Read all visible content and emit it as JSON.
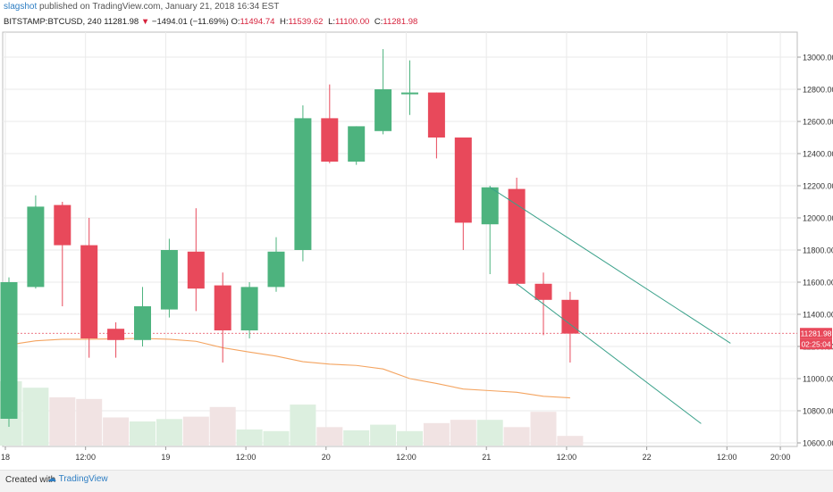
{
  "header": {
    "author": "slagshot",
    "published_text": "published on TradingView.com, January 21, 2018 16:34 EST",
    "symbol": "BITSTAMP:BTCUSD, 240",
    "last_price": "11281.98",
    "arrow": "▼",
    "change": "−1494.01 (−11.69%)",
    "o_label": "O:",
    "o_value": "11494.74",
    "h_label": "H:",
    "h_value": "11539.62",
    "l_label": "L:",
    "l_value": "11100.00",
    "c_label": "C:",
    "c_value": "11281.98"
  },
  "footer": {
    "created_with": "Created with",
    "brand": "TradingView"
  },
  "colors": {
    "up": "#4db37e",
    "down": "#e8495b",
    "volume_up": "#dcefdf",
    "volume_down": "#f1e3e3",
    "ma": "#f4a460",
    "trendline": "#3aa18a",
    "price_line": "#e8495b",
    "grid": "#eaeaea"
  },
  "chart_data": {
    "type": "candlestick",
    "y_axis_ticks": [
      "13000.00",
      "12800.00",
      "12600.00",
      "12400.00",
      "12200.00",
      "12000.00",
      "11800.00",
      "11600.00",
      "11400.00",
      "11200.00",
      "11000.00",
      "10800.00",
      "10600.00"
    ],
    "x_axis_ticks": [
      {
        "label": "18",
        "index": 0
      },
      {
        "label": "12:00",
        "index": 3
      },
      {
        "label": "19",
        "index": 6
      },
      {
        "label": "12:00",
        "index": 9
      },
      {
        "label": "20",
        "index": 12
      },
      {
        "label": "12:00",
        "index": 15
      },
      {
        "label": "21",
        "index": 18
      },
      {
        "label": "12:00",
        "index": 21
      },
      {
        "label": "22",
        "index": 24
      },
      {
        "label": "12:00",
        "index": 27
      },
      {
        "label": "20:00",
        "index": 29
      }
    ],
    "ylim": [
      10550,
      13120
    ],
    "candles": [
      {
        "o": 10750,
        "h": 11630,
        "l": 10700,
        "c": 11600
      },
      {
        "o": 11570,
        "h": 12140,
        "l": 11560,
        "c": 12070
      },
      {
        "o": 12080,
        "h": 12100,
        "l": 11450,
        "c": 11830
      },
      {
        "o": 11830,
        "h": 12000,
        "l": 11130,
        "c": 11250
      },
      {
        "o": 11310,
        "h": 11350,
        "l": 11130,
        "c": 11240
      },
      {
        "o": 11240,
        "h": 11570,
        "l": 11200,
        "c": 11450
      },
      {
        "o": 11430,
        "h": 11870,
        "l": 11380,
        "c": 11800
      },
      {
        "o": 11790,
        "h": 12060,
        "l": 11420,
        "c": 11560
      },
      {
        "o": 11580,
        "h": 11660,
        "l": 11100,
        "c": 11300
      },
      {
        "o": 11300,
        "h": 11600,
        "l": 11250,
        "c": 11570
      },
      {
        "o": 11570,
        "h": 11880,
        "l": 11540,
        "c": 11790
      },
      {
        "o": 11800,
        "h": 12700,
        "l": 11730,
        "c": 12620
      },
      {
        "o": 12620,
        "h": 12830,
        "l": 12340,
        "c": 12350
      },
      {
        "o": 12350,
        "h": 12570,
        "l": 12330,
        "c": 12570
      },
      {
        "o": 12540,
        "h": 13050,
        "l": 12520,
        "c": 12800
      },
      {
        "o": 12770,
        "h": 12980,
        "l": 12640,
        "c": 12780
      },
      {
        "o": 12780,
        "h": 12780,
        "l": 12370,
        "c": 12500
      },
      {
        "o": 12500,
        "h": 12500,
        "l": 11800,
        "c": 11970
      },
      {
        "o": 11960,
        "h": 12200,
        "l": 11650,
        "c": 12190
      },
      {
        "o": 12180,
        "h": 12250,
        "l": 11580,
        "c": 11590
      },
      {
        "o": 11590,
        "h": 11660,
        "l": 11270,
        "c": 11490
      },
      {
        "o": 11490,
        "h": 11540,
        "l": 11100,
        "c": 11280
      }
    ],
    "volume": [
      {
        "v": 0.8,
        "dir": "up"
      },
      {
        "v": 0.72,
        "dir": "up"
      },
      {
        "v": 0.6,
        "dir": "down"
      },
      {
        "v": 0.58,
        "dir": "down"
      },
      {
        "v": 0.35,
        "dir": "down"
      },
      {
        "v": 0.3,
        "dir": "up"
      },
      {
        "v": 0.33,
        "dir": "up"
      },
      {
        "v": 0.36,
        "dir": "down"
      },
      {
        "v": 0.48,
        "dir": "down"
      },
      {
        "v": 0.2,
        "dir": "up"
      },
      {
        "v": 0.18,
        "dir": "up"
      },
      {
        "v": 0.51,
        "dir": "up"
      },
      {
        "v": 0.23,
        "dir": "down"
      },
      {
        "v": 0.19,
        "dir": "up"
      },
      {
        "v": 0.26,
        "dir": "up"
      },
      {
        "v": 0.18,
        "dir": "up"
      },
      {
        "v": 0.28,
        "dir": "down"
      },
      {
        "v": 0.32,
        "dir": "down"
      },
      {
        "v": 0.32,
        "dir": "up"
      },
      {
        "v": 0.23,
        "dir": "down"
      },
      {
        "v": 0.42,
        "dir": "down"
      },
      {
        "v": 0.12,
        "dir": "down"
      }
    ],
    "moving_average": [
      {
        "i": 0,
        "y": 11210
      },
      {
        "i": 1,
        "y": 11235
      },
      {
        "i": 2,
        "y": 11245
      },
      {
        "i": 3,
        "y": 11245
      },
      {
        "i": 4,
        "y": 11248
      },
      {
        "i": 5,
        "y": 11250
      },
      {
        "i": 6,
        "y": 11245
      },
      {
        "i": 7,
        "y": 11232
      },
      {
        "i": 8,
        "y": 11192
      },
      {
        "i": 9,
        "y": 11165
      },
      {
        "i": 10,
        "y": 11140
      },
      {
        "i": 11,
        "y": 11105
      },
      {
        "i": 12,
        "y": 11090
      },
      {
        "i": 13,
        "y": 11082
      },
      {
        "i": 14,
        "y": 11060
      },
      {
        "i": 15,
        "y": 11000
      },
      {
        "i": 16,
        "y": 10970
      },
      {
        "i": 17,
        "y": 10935
      },
      {
        "i": 18,
        "y": 10925
      },
      {
        "i": 19,
        "y": 10915
      },
      {
        "i": 20,
        "y": 10890
      },
      {
        "i": 21,
        "y": 10880
      }
    ],
    "trendlines": [
      {
        "from": {
          "i": 18.0,
          "y": 12190
        },
        "to": {
          "i": 27.0,
          "y": 11220
        }
      },
      {
        "from": {
          "i": 19.0,
          "y": 11590
        },
        "to": {
          "i": 25.9,
          "y": 10720
        }
      }
    ],
    "current_price_label": "11281.98",
    "countdown_label": "02:25:04",
    "current_price": 11281.98
  }
}
